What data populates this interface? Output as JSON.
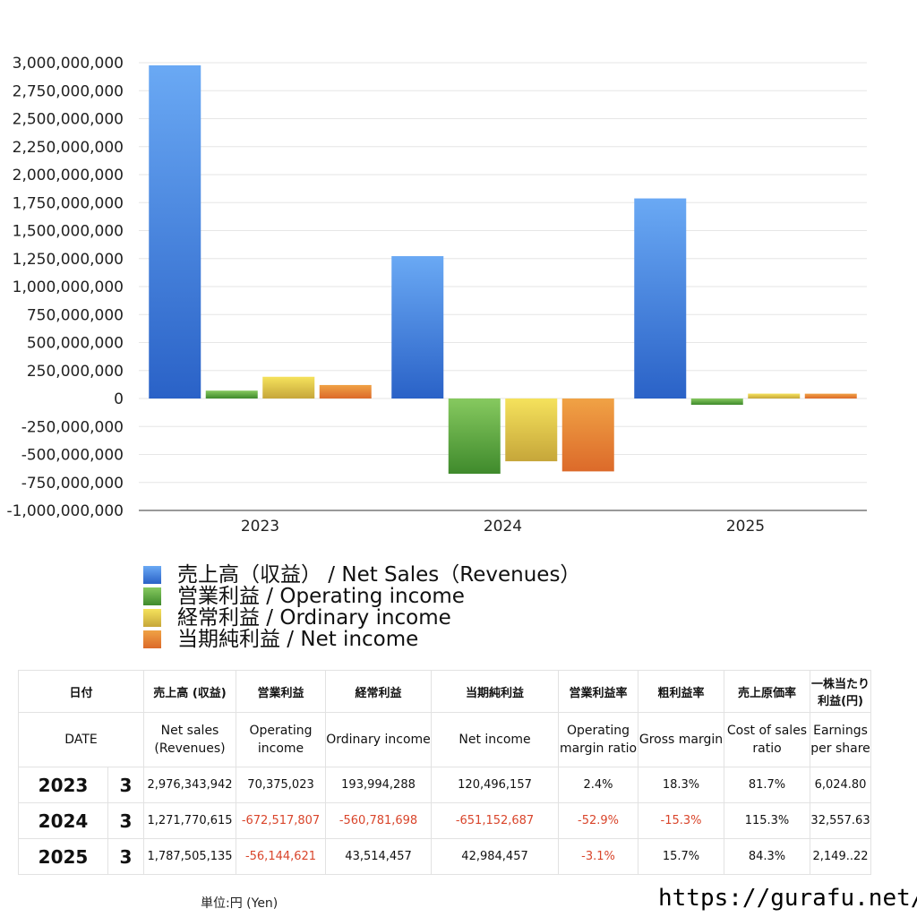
{
  "chart_data": {
    "type": "bar",
    "categories": [
      "2023",
      "2024",
      "2025"
    ],
    "ylim": [
      -1000000000,
      3000000000
    ],
    "yticks": [
      3000000000,
      2750000000,
      2500000000,
      2250000000,
      2000000000,
      1750000000,
      1500000000,
      1250000000,
      1000000000,
      750000000,
      500000000,
      250000000,
      0,
      -250000000,
      -500000000,
      -750000000,
      -1000000000
    ],
    "ytick_labels": [
      "3,000,000,000",
      "2,750,000,000",
      "2,500,000,000",
      "2,250,000,000",
      "2,000,000,000",
      "1,750,000,000",
      "1,500,000,000",
      "1,250,000,000",
      "1,000,000,000",
      "750,000,000",
      "500,000,000",
      "250,000,000",
      "0",
      "-250,000,000",
      "-500,000,000",
      "-750,000,000",
      "-1,000,000,000"
    ],
    "grid": true,
    "legend_position": "bottom-left",
    "series": [
      {
        "name": "売上高（収益） / Net Sales（Revenues）",
        "color_top": "#6aa9f4",
        "color_bottom": "#2a62c7",
        "values": [
          2976343942,
          1271770615,
          1787505135
        ]
      },
      {
        "name": "営業利益 / Operating income",
        "color_top": "#86c95f",
        "color_bottom": "#3f8a2c",
        "values": [
          70375023,
          -672517807,
          -56144621
        ]
      },
      {
        "name": "経常利益 / Ordinary income",
        "color_top": "#f5e25c",
        "color_bottom": "#c6a63a",
        "values": [
          193994288,
          -560781698,
          43514457
        ]
      },
      {
        "name": "当期純利益 / Net income",
        "color_top": "#f0a245",
        "color_bottom": "#dc6a2a",
        "values": [
          120496157,
          -651152687,
          42984457
        ]
      }
    ]
  },
  "table": {
    "header_jp": [
      "日付",
      "売上高 (収益)",
      "営業利益",
      "経常利益",
      "当期純利益",
      "営業利益率",
      "粗利益率",
      "売上原価率",
      "一株当たり利益(円)"
    ],
    "header_en": [
      "DATE",
      "Net sales (Revenues)",
      "Operating income",
      "Ordinary income",
      "Net income",
      "Operating margin ratio",
      "Gross margin",
      "Cost of sales ratio",
      "Earnings per share"
    ],
    "rows": [
      {
        "year": "2023",
        "month": "3",
        "cells": [
          "2,976,343,942",
          "70,375,023",
          "193,994,288",
          "120,496,157",
          "2.4%",
          "18.3%",
          "81.7%",
          "6,024.80"
        ],
        "neg": [
          false,
          false,
          false,
          false,
          false,
          false,
          false,
          false
        ]
      },
      {
        "year": "2024",
        "month": "3",
        "cells": [
          "1,271,770,615",
          "-672,517,807",
          "-560,781,698",
          "-651,152,687",
          "-52.9%",
          "-15.3%",
          "115.3%",
          "32,557.63"
        ],
        "neg": [
          false,
          true,
          true,
          true,
          true,
          true,
          false,
          false
        ]
      },
      {
        "year": "2025",
        "month": "3",
        "cells": [
          "1,787,505,135",
          "-56,144,621",
          "43,514,457",
          "42,984,457",
          "-3.1%",
          "15.7%",
          "84.3%",
          "2,149..22"
        ],
        "neg": [
          false,
          true,
          false,
          false,
          true,
          false,
          false,
          false
        ]
      }
    ]
  },
  "footer": {
    "unit": "単位:円 (Yen)",
    "site": "https://gurafu.net/"
  }
}
